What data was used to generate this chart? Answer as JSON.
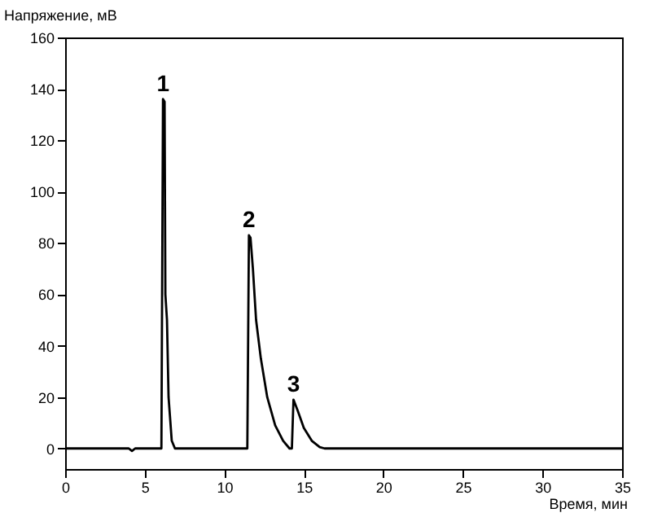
{
  "chart_data": {
    "type": "line",
    "xlabel": "Время, мин",
    "ylabel": "Напряжение, мВ",
    "xlim": [
      0,
      35
    ],
    "xticks": [
      0,
      5,
      10,
      15,
      20,
      25,
      30,
      35
    ],
    "ylim": [
      -8,
      160
    ],
    "yticks": [
      0,
      20,
      40,
      60,
      80,
      100,
      120,
      140,
      160
    ],
    "grid": false,
    "marker": "none",
    "line_style": "solid",
    "series": [
      {
        "color": "#000000",
        "x": [
          0,
          4,
          4.2,
          4.4,
          6.05,
          6.15,
          6.25,
          6.3,
          6.4,
          6.5,
          6.7,
          6.9,
          10,
          11.45,
          11.55,
          11.65,
          11.8,
          12,
          12.3,
          12.7,
          13.2,
          13.7,
          14.1,
          14.25,
          14.35,
          14.6,
          15,
          15.5,
          16,
          16.3,
          35
        ],
        "values": [
          0,
          0,
          -1,
          0,
          0,
          136,
          135,
          60,
          50,
          20,
          3,
          0,
          0,
          0,
          83,
          82,
          70,
          50,
          35,
          20,
          9,
          3,
          0,
          0,
          19,
          15,
          8,
          3,
          0.5,
          0,
          0
        ]
      }
    ],
    "annotations": [
      {
        "text": "1",
        "x": 6.15,
        "y": 136
      },
      {
        "text": "2",
        "x": 11.55,
        "y": 83
      },
      {
        "text": "3",
        "x": 14.35,
        "y": 19
      }
    ]
  }
}
